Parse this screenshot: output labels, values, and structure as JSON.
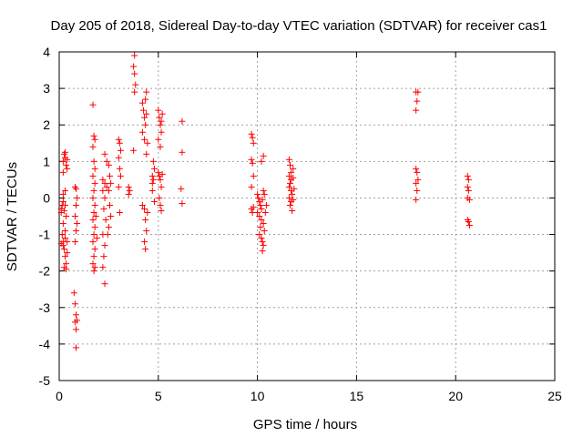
{
  "chart_data": {
    "type": "scatter",
    "title": "Day 205 of 2018, Sidereal Day-to-day VTEC variation (SDTVAR) for receiver cas1",
    "xlabel": "GPS time / hours",
    "ylabel": "SDTVAR / TECUs",
    "xlim": [
      0,
      25
    ],
    "ylim": [
      -5,
      4
    ],
    "xticks": [
      "0",
      "5",
      "10",
      "15",
      "20",
      "25"
    ],
    "yticks": [
      "-5",
      "-4",
      "-3",
      "-2",
      "-1",
      "0",
      "1",
      "2",
      "3",
      "4"
    ],
    "grid": true,
    "marker": "plus",
    "color": "#ff0000",
    "series": [
      {
        "name": "SDTVAR",
        "points": [
          [
            0.1,
            -0.3
          ],
          [
            0.15,
            -0.2
          ],
          [
            0.2,
            -0.1
          ],
          [
            0.1,
            -0.4
          ],
          [
            0.25,
            -0.35
          ],
          [
            0.3,
            -0.2
          ],
          [
            0.2,
            0.1
          ],
          [
            0.3,
            0.2
          ],
          [
            0.15,
            -1.0
          ],
          [
            0.2,
            -1.2
          ],
          [
            0.25,
            -1.4
          ],
          [
            0.3,
            -1.6
          ],
          [
            0.35,
            -1.8
          ],
          [
            0.2,
            -1.3
          ],
          [
            0.3,
            -1.1
          ],
          [
            0.4,
            -1.5
          ],
          [
            0.25,
            -1.9
          ],
          [
            0.35,
            -1.95
          ],
          [
            0.1,
            -1.25
          ],
          [
            0.4,
            -1.2
          ],
          [
            0.3,
            -0.9
          ],
          [
            0.2,
            -0.7
          ],
          [
            0.35,
            -0.5
          ],
          [
            0.2,
            1.0
          ],
          [
            0.25,
            1.2
          ],
          [
            0.3,
            1.1
          ],
          [
            0.35,
            0.9
          ],
          [
            0.4,
            0.8
          ],
          [
            0.2,
            0.7
          ],
          [
            0.3,
            1.25
          ],
          [
            0.4,
            1.05
          ],
          [
            0.8,
            0.3
          ],
          [
            0.85,
            0.25
          ],
          [
            0.9,
            0.0
          ],
          [
            0.85,
            -0.2
          ],
          [
            0.8,
            -0.5
          ],
          [
            0.9,
            -0.7
          ],
          [
            0.85,
            -0.9
          ],
          [
            0.8,
            -1.2
          ],
          [
            0.75,
            -2.6
          ],
          [
            0.8,
            -2.9
          ],
          [
            0.85,
            -3.2
          ],
          [
            0.9,
            -3.35
          ],
          [
            0.8,
            -3.4
          ],
          [
            0.85,
            -3.6
          ],
          [
            0.85,
            -4.1
          ],
          [
            1.7,
            2.55
          ],
          [
            1.75,
            1.7
          ],
          [
            1.8,
            1.6
          ],
          [
            1.7,
            1.4
          ],
          [
            1.75,
            1.0
          ],
          [
            1.8,
            0.8
          ],
          [
            1.7,
            0.6
          ],
          [
            1.8,
            0.4
          ],
          [
            1.75,
            0.2
          ],
          [
            1.7,
            0.0
          ],
          [
            1.8,
            -0.2
          ],
          [
            1.75,
            -0.4
          ],
          [
            1.7,
            -0.6
          ],
          [
            1.8,
            -0.8
          ],
          [
            1.75,
            -1.0
          ],
          [
            1.7,
            -1.2
          ],
          [
            1.8,
            -1.4
          ],
          [
            1.75,
            -1.6
          ],
          [
            1.7,
            -1.8
          ],
          [
            1.8,
            -1.9
          ],
          [
            1.75,
            -2.0
          ],
          [
            1.85,
            -0.5
          ],
          [
            1.9,
            -1.1
          ],
          [
            2.2,
            0.5
          ],
          [
            2.3,
            0.4
          ],
          [
            2.4,
            0.3
          ],
          [
            2.2,
            0.2
          ],
          [
            2.3,
            0.0
          ],
          [
            2.25,
            -0.3
          ],
          [
            2.35,
            -0.6
          ],
          [
            2.2,
            -1.0
          ],
          [
            2.3,
            -1.3
          ],
          [
            2.25,
            -1.6
          ],
          [
            2.2,
            -1.9
          ],
          [
            2.3,
            -2.35
          ],
          [
            2.4,
            1.0
          ],
          [
            2.3,
            1.2
          ],
          [
            2.5,
            0.9
          ],
          [
            2.55,
            0.6
          ],
          [
            2.6,
            0.4
          ],
          [
            2.5,
            0.2
          ],
          [
            2.55,
            -0.2
          ],
          [
            2.6,
            -0.5
          ],
          [
            2.5,
            -0.8
          ],
          [
            2.45,
            -1.0
          ],
          [
            3.0,
            1.6
          ],
          [
            3.05,
            1.5
          ],
          [
            3.1,
            1.3
          ],
          [
            3.0,
            1.1
          ],
          [
            3.05,
            0.8
          ],
          [
            3.1,
            0.6
          ],
          [
            3.0,
            0.3
          ],
          [
            3.05,
            -0.4
          ],
          [
            3.5,
            0.3
          ],
          [
            3.55,
            0.2
          ],
          [
            3.5,
            0.1
          ],
          [
            3.8,
            3.9
          ],
          [
            3.75,
            3.6
          ],
          [
            3.8,
            3.4
          ],
          [
            3.85,
            3.1
          ],
          [
            3.8,
            2.9
          ],
          [
            3.75,
            1.3
          ],
          [
            4.2,
            2.6
          ],
          [
            4.25,
            2.4
          ],
          [
            4.3,
            2.2
          ],
          [
            4.35,
            2.0
          ],
          [
            4.2,
            1.8
          ],
          [
            4.3,
            1.6
          ],
          [
            4.4,
            2.9
          ],
          [
            4.35,
            2.7
          ],
          [
            4.4,
            2.3
          ],
          [
            4.45,
            1.5
          ],
          [
            4.4,
            1.2
          ],
          [
            4.3,
            -0.3
          ],
          [
            4.35,
            -0.6
          ],
          [
            4.4,
            -0.9
          ],
          [
            4.3,
            -1.2
          ],
          [
            4.35,
            -1.4
          ],
          [
            4.2,
            -0.2
          ],
          [
            4.45,
            -0.4
          ],
          [
            4.7,
            0.6
          ],
          [
            4.75,
            0.5
          ],
          [
            4.7,
            0.4
          ],
          [
            4.8,
            0.8
          ],
          [
            4.75,
            1.0
          ],
          [
            4.7,
            0.2
          ],
          [
            4.8,
            -0.1
          ],
          [
            5.0,
            2.4
          ],
          [
            5.05,
            2.2
          ],
          [
            5.1,
            2.0
          ],
          [
            5.15,
            1.8
          ],
          [
            5.0,
            1.6
          ],
          [
            5.1,
            1.4
          ],
          [
            5.2,
            2.3
          ],
          [
            5.15,
            2.1
          ],
          [
            5.0,
            0.7
          ],
          [
            5.05,
            0.6
          ],
          [
            5.1,
            0.5
          ],
          [
            5.2,
            0.65
          ],
          [
            5.15,
            0.3
          ],
          [
            5.05,
            0.0
          ],
          [
            5.1,
            -0.2
          ],
          [
            5.15,
            -0.35
          ],
          [
            6.2,
            2.1
          ],
          [
            6.2,
            1.25
          ],
          [
            6.15,
            0.25
          ],
          [
            6.2,
            -0.15
          ],
          [
            9.7,
            1.75
          ],
          [
            9.75,
            1.65
          ],
          [
            9.8,
            1.5
          ],
          [
            9.7,
            1.05
          ],
          [
            9.75,
            0.95
          ],
          [
            9.8,
            0.6
          ],
          [
            9.7,
            0.3
          ],
          [
            9.7,
            -0.3
          ],
          [
            9.75,
            -0.4
          ],
          [
            9.8,
            -0.25
          ],
          [
            10.0,
            0.1
          ],
          [
            10.05,
            0.0
          ],
          [
            10.1,
            -0.1
          ],
          [
            10.15,
            -0.2
          ],
          [
            10.2,
            -0.3
          ],
          [
            10.0,
            -0.4
          ],
          [
            10.1,
            -0.5
          ],
          [
            10.2,
            -0.6
          ],
          [
            10.15,
            -0.8
          ],
          [
            10.1,
            -1.0
          ],
          [
            10.2,
            -1.1
          ],
          [
            10.25,
            -1.2
          ],
          [
            10.3,
            -1.3
          ],
          [
            10.25,
            -1.45
          ],
          [
            10.3,
            0.2
          ],
          [
            10.35,
            0.1
          ],
          [
            10.25,
            -0.05
          ],
          [
            10.3,
            -0.7
          ],
          [
            10.35,
            -0.9
          ],
          [
            10.2,
            1.0
          ],
          [
            10.3,
            1.15
          ],
          [
            10.4,
            -0.4
          ],
          [
            10.45,
            -0.2
          ],
          [
            11.6,
            1.05
          ],
          [
            11.65,
            0.9
          ],
          [
            11.7,
            0.7
          ],
          [
            11.6,
            0.6
          ],
          [
            11.7,
            0.5
          ],
          [
            11.65,
            0.4
          ],
          [
            11.6,
            0.3
          ],
          [
            11.7,
            0.2
          ],
          [
            11.75,
            0.1
          ],
          [
            11.6,
            0.0
          ],
          [
            11.7,
            -0.1
          ],
          [
            11.65,
            -0.2
          ],
          [
            11.75,
            -0.35
          ],
          [
            11.8,
            0.8
          ],
          [
            11.8,
            0.55
          ],
          [
            11.85,
            0.25
          ],
          [
            11.8,
            -0.05
          ],
          [
            18.0,
            2.9
          ],
          [
            18.1,
            2.9
          ],
          [
            18.05,
            2.65
          ],
          [
            18.0,
            2.4
          ],
          [
            18.0,
            0.8
          ],
          [
            18.05,
            0.7
          ],
          [
            18.1,
            0.5
          ],
          [
            18.0,
            0.4
          ],
          [
            18.05,
            0.2
          ],
          [
            18.0,
            -0.05
          ],
          [
            20.6,
            0.6
          ],
          [
            20.65,
            0.5
          ],
          [
            20.6,
            0.3
          ],
          [
            20.65,
            0.2
          ],
          [
            20.6,
            0.0
          ],
          [
            20.7,
            -0.05
          ],
          [
            20.6,
            -0.6
          ],
          [
            20.65,
            -0.65
          ],
          [
            20.7,
            -0.75
          ]
        ]
      }
    ]
  }
}
